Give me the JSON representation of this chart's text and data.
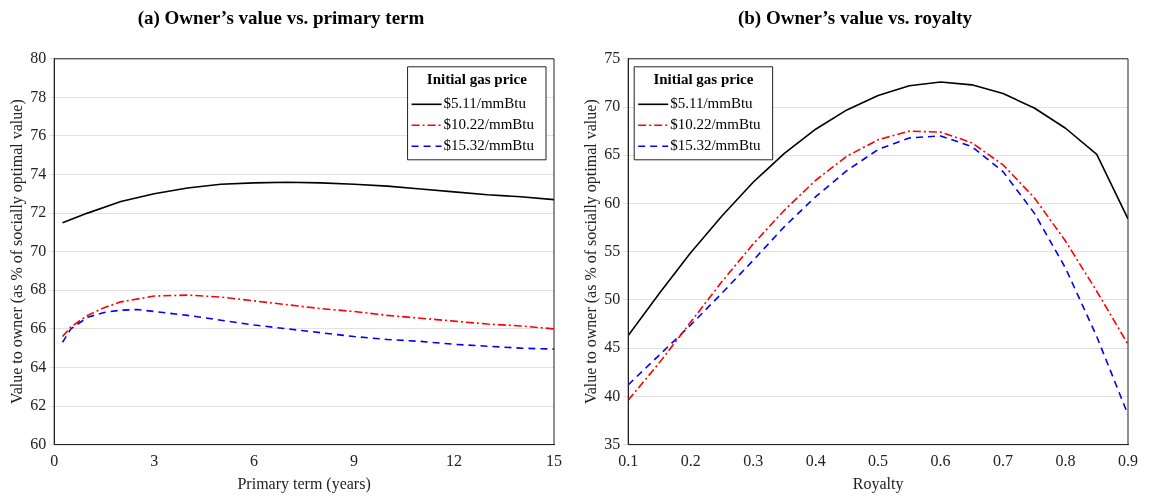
{
  "chart_data": [
    {
      "type": "line",
      "title": "(a) Owner’s value vs. primary term",
      "xlabel": "Primary term (years)",
      "ylabel": "Value to owner (as % of socially optimal value)",
      "legend_title": "Initial gas price",
      "legend": "top right",
      "grid": "y",
      "xlim": [
        0,
        15
      ],
      "xticks": [
        0,
        3,
        6,
        9,
        12,
        15
      ],
      "ylim": [
        60,
        80
      ],
      "yticks": [
        60,
        62,
        64,
        66,
        68,
        70,
        72,
        74,
        76,
        78,
        80
      ],
      "series": [
        {
          "name": "$5.11/mmBtu",
          "color": "#000000",
          "line_style": "solid",
          "x": [
            0.25,
            1,
            2,
            3,
            4,
            5,
            6,
            7,
            8,
            9,
            10,
            11,
            12,
            13,
            14,
            15
          ],
          "values": [
            71.5,
            72.0,
            72.6,
            73.0,
            73.3,
            73.5,
            73.57,
            73.6,
            73.57,
            73.5,
            73.4,
            73.25,
            73.1,
            72.95,
            72.85,
            72.7
          ]
        },
        {
          "name": "$10.22/mmBtu",
          "color": "#ff0000",
          "line_style": "dashdot",
          "x": [
            0.25,
            0.5,
            1,
            1.5,
            2,
            3,
            4,
            5,
            6,
            7,
            8,
            9,
            10,
            11,
            12,
            13,
            14,
            15
          ],
          "values": [
            65.6,
            66.1,
            66.7,
            67.1,
            67.4,
            67.7,
            67.75,
            67.65,
            67.45,
            67.25,
            67.05,
            66.9,
            66.7,
            66.55,
            66.4,
            66.25,
            66.15,
            66.0
          ]
        },
        {
          "name": "$15.32/mmBtu",
          "color": "#0000ff",
          "line_style": "dashed",
          "x": [
            0.25,
            0.5,
            1,
            1.5,
            2,
            2.5,
            3,
            4,
            5,
            6,
            7,
            8,
            9,
            10,
            11,
            12,
            13,
            14,
            15
          ],
          "values": [
            65.3,
            66.0,
            66.6,
            66.85,
            66.97,
            67.0,
            66.9,
            66.7,
            66.45,
            66.2,
            66.0,
            65.8,
            65.6,
            65.45,
            65.35,
            65.2,
            65.1,
            65.0,
            64.95
          ]
        }
      ]
    },
    {
      "type": "line",
      "title": "(b) Owner’s value vs. royalty",
      "xlabel": "Royalty",
      "ylabel": "Value to owner (as % of socially optimal value)",
      "legend_title": "Initial gas price",
      "legend": "top left",
      "grid": "y",
      "xlim": [
        0.1,
        0.9
      ],
      "xticks": [
        0.1,
        0.2,
        0.3,
        0.4,
        0.5,
        0.6,
        0.7,
        0.8,
        0.9
      ],
      "ylim": [
        35,
        75
      ],
      "yticks": [
        35,
        40,
        45,
        50,
        55,
        60,
        65,
        70,
        75
      ],
      "x": [
        0.1,
        0.15,
        0.2,
        0.25,
        0.3,
        0.35,
        0.4,
        0.45,
        0.5,
        0.55,
        0.6,
        0.65,
        0.7,
        0.75,
        0.8,
        0.85,
        0.9
      ],
      "series": [
        {
          "name": "$5.11/mmBtu",
          "color": "#000000",
          "line_style": "solid",
          "values": [
            46.3,
            50.7,
            54.9,
            58.7,
            62.2,
            65.2,
            67.7,
            69.7,
            71.2,
            72.2,
            72.6,
            72.3,
            71.4,
            69.9,
            67.8,
            65.1,
            58.4
          ]
        },
        {
          "name": "$10.22/mmBtu",
          "color": "#ff0000",
          "line_style": "dashdot",
          "values": [
            39.6,
            43.5,
            47.7,
            51.9,
            55.8,
            59.3,
            62.4,
            64.9,
            66.6,
            67.5,
            67.4,
            66.3,
            64.0,
            60.6,
            56.1,
            50.9,
            45.4
          ]
        },
        {
          "name": "$15.32/mmBtu",
          "color": "#0000ff",
          "line_style": "dashed",
          "values": [
            41.2,
            44.3,
            47.4,
            50.7,
            54.1,
            57.6,
            60.7,
            63.4,
            65.6,
            66.8,
            67.0,
            65.9,
            63.3,
            59.0,
            53.3,
            46.2,
            38.1
          ]
        }
      ]
    }
  ]
}
